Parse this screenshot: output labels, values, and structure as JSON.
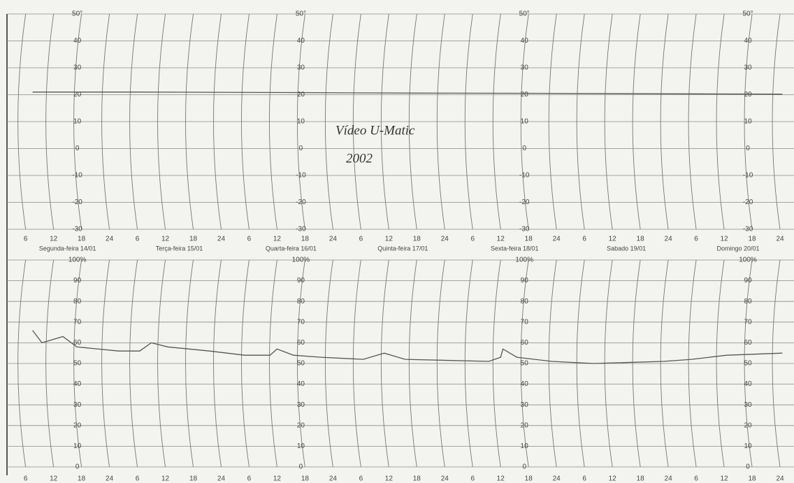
{
  "chart_data": [
    {
      "type": "line",
      "annotations": [
        "Vídeo U-Matic",
        "2002"
      ],
      "day_labels": [
        "Segunda-feira 14/01",
        "Terça-feira 15/01",
        "Quarta-feira 16/01",
        "Quinta-feira 17/01",
        "Sexta-feira 18/01",
        "Sabado 19/01",
        "Domingo 20/01"
      ],
      "x": [
        7.5,
        30,
        60,
        90,
        120,
        150,
        168.5
      ],
      "series": [
        {
          "color": "#555555",
          "values": [
            21,
            21,
            20.8,
            20.6,
            20.5,
            20.3,
            20.2
          ]
        }
      ],
      "xlim": [
        2,
        171
      ],
      "xticks": [
        6,
        12,
        18,
        24,
        {
          "value": 30,
          "label": "6"
        },
        {
          "value": 36,
          "label": "12"
        },
        {
          "value": 42,
          "label": "18"
        },
        {
          "value": 48,
          "label": "24"
        },
        {
          "value": 54,
          "label": "6"
        },
        {
          "value": 60,
          "label": "12"
        },
        {
          "value": 66,
          "label": "18"
        },
        {
          "value": 72,
          "label": "24"
        },
        {
          "value": 78,
          "label": "6"
        },
        {
          "value": 84,
          "label": "12"
        },
        {
          "value": 90,
          "label": "18"
        },
        {
          "value": 96,
          "label": "24"
        },
        {
          "value": 102,
          "label": "6"
        },
        {
          "value": 108,
          "label": "12"
        },
        {
          "value": 114,
          "label": "18"
        },
        {
          "value": 120,
          "label": "24"
        },
        {
          "value": 126,
          "label": "6"
        },
        {
          "value": 132,
          "label": "12"
        },
        {
          "value": 138,
          "label": "18"
        },
        {
          "value": 144,
          "label": "24"
        },
        {
          "value": 150,
          "label": "6"
        },
        {
          "value": 156,
          "label": "12"
        },
        {
          "value": 162,
          "label": "18"
        },
        {
          "value": 168,
          "label": "24"
        }
      ],
      "ylim": [
        -30,
        50
      ],
      "yticks": [
        -30,
        -20,
        -10,
        0,
        10,
        20,
        30,
        40,
        {
          "value": 50,
          "label": "50°"
        }
      ],
      "grid": true
    },
    {
      "type": "line",
      "x": [
        7.5,
        9.5,
        14,
        17,
        26,
        30.5,
        33,
        36.5,
        45.5,
        53,
        58.5,
        60,
        63.5,
        69.5,
        78.5,
        83,
        87.5,
        105.5,
        108,
        108.5,
        111.5,
        119,
        128,
        143,
        149,
        156.5,
        168.5
      ],
      "series": [
        {
          "color": "#555555",
          "values": [
            66,
            60,
            63,
            58,
            56,
            56,
            60,
            58,
            56,
            54,
            54,
            57,
            54,
            53,
            52,
            55,
            52,
            51,
            53,
            57,
            53,
            51,
            50,
            51,
            52,
            54,
            55
          ]
        }
      ],
      "xlim": [
        2,
        171
      ],
      "xticks": [
        6,
        12,
        18,
        24,
        {
          "value": 30,
          "label": "6"
        },
        {
          "value": 36,
          "label": "12"
        },
        {
          "value": 42,
          "label": "18"
        },
        {
          "value": 48,
          "label": "24"
        },
        {
          "value": 54,
          "label": "6"
        },
        {
          "value": 60,
          "label": "12"
        },
        {
          "value": 66,
          "label": "18"
        },
        {
          "value": 72,
          "label": "24"
        },
        {
          "value": 78,
          "label": "6"
        },
        {
          "value": 84,
          "label": "12"
        },
        {
          "value": 90,
          "label": "18"
        },
        {
          "value": 96,
          "label": "24"
        },
        {
          "value": 102,
          "label": "6"
        },
        {
          "value": 108,
          "label": "12"
        },
        {
          "value": 114,
          "label": "18"
        },
        {
          "value": 120,
          "label": "24"
        },
        {
          "value": 126,
          "label": "6"
        },
        {
          "value": 132,
          "label": "12"
        },
        {
          "value": 138,
          "label": "18"
        },
        {
          "value": 144,
          "label": "24"
        },
        {
          "value": 150,
          "label": "6"
        },
        {
          "value": 156,
          "label": "12"
        },
        {
          "value": 162,
          "label": "18"
        },
        {
          "value": 168,
          "label": "24"
        }
      ],
      "ylim": [
        0,
        100
      ],
      "yticks": [
        0,
        10,
        20,
        30,
        40,
        50,
        60,
        70,
        80,
        90,
        {
          "value": 100,
          "label": "100%"
        }
      ],
      "grid": true
    }
  ]
}
